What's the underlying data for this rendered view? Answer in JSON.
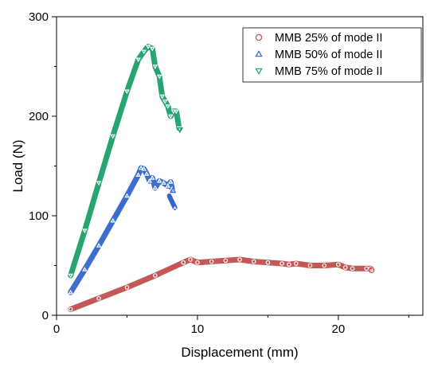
{
  "chart_data": {
    "type": "line",
    "xlabel": "Displacement (mm)",
    "ylabel": "Load (N)",
    "xlim": [
      0,
      26
    ],
    "ylim": [
      0,
      300
    ],
    "xticks": [
      0,
      10,
      20
    ],
    "yticks": [
      0,
      100,
      200,
      300
    ],
    "xtick_labels": [
      "0",
      "10",
      "20"
    ],
    "ytick_labels": [
      "0",
      "100",
      "200",
      "300"
    ],
    "grid": false,
    "legend_position": "top-right",
    "series": [
      {
        "name": "MMB 25% of mode II",
        "marker": "circle",
        "color": "#c0504d",
        "x": [
          1.0,
          3.0,
          5.0,
          7.0,
          9.0,
          9.5,
          10.0,
          11.0,
          12.0,
          13.0,
          14.0,
          15.0,
          16.0,
          16.5,
          17.0,
          18.0,
          19.0,
          20.0,
          20.5,
          21.0,
          22.0,
          22.3
        ],
        "y": [
          6,
          17,
          28,
          40,
          53,
          56,
          53,
          54,
          55,
          56,
          54,
          53,
          52,
          51,
          52,
          50,
          50,
          51,
          48,
          47,
          47,
          47
        ]
      },
      {
        "name": "MMB 50% of mode II",
        "marker": "triangle-up",
        "color": "#3366cc",
        "x": [
          1.0,
          2.0,
          3.0,
          4.0,
          5.0,
          5.8,
          6.0,
          6.2,
          6.4,
          6.6,
          6.8,
          7.0,
          7.3,
          7.6,
          7.9,
          8.1,
          8.2
        ],
        "y": [
          23,
          46,
          70,
          95,
          120,
          141,
          148,
          147,
          142,
          135,
          138,
          128,
          135,
          133,
          130,
          134,
          127
        ]
      },
      {
        "name": "MMB 75% of mode II",
        "marker": "triangle-down",
        "color": "#1aa06a",
        "x": [
          1.0,
          2.0,
          3.0,
          4.0,
          5.0,
          5.8,
          6.2,
          6.5,
          6.8,
          7.0,
          7.3,
          7.5,
          7.7,
          7.9,
          8.1,
          8.3,
          8.5,
          8.7
        ],
        "y": [
          40,
          85,
          133,
          180,
          225,
          257,
          265,
          270,
          268,
          250,
          240,
          220,
          215,
          210,
          200,
          205,
          205,
          188
        ]
      }
    ],
    "extra_segments": [
      {
        "series_index": 1,
        "x": [
          8.0,
          8.2,
          8.4
        ],
        "y": [
          120,
          114,
          108
        ]
      }
    ]
  }
}
